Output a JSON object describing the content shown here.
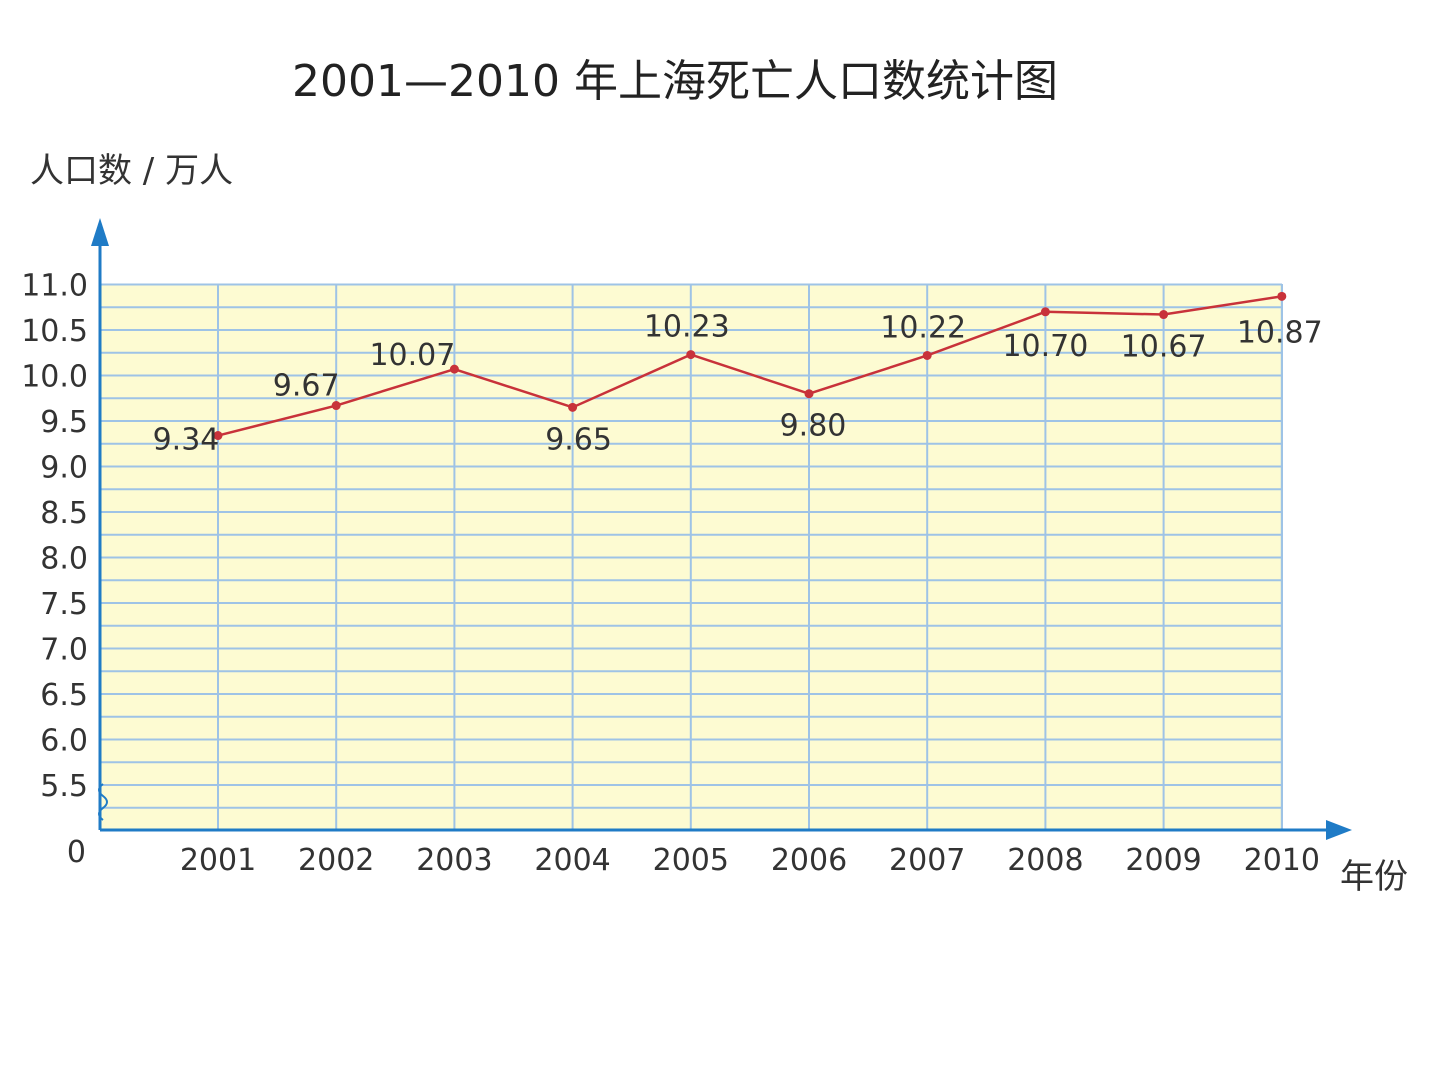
{
  "chart_data": {
    "type": "line",
    "title": "2001—2010 年上海死亡人口数统计图",
    "ylabel": "人口数 / 万人",
    "xlabel": "年份",
    "origin_label": "0",
    "categories": [
      "2001",
      "2002",
      "2003",
      "2004",
      "2005",
      "2006",
      "2007",
      "2008",
      "2009",
      "2010"
    ],
    "series": [
      {
        "values": [
          9.34,
          9.67,
          10.07,
          9.65,
          10.23,
          9.8,
          10.22,
          10.7,
          10.67,
          10.87
        ],
        "labels": [
          "9.34",
          "9.67",
          "10.07",
          "9.65",
          "10.23",
          "9.80",
          "10.22",
          "10.70",
          "10.67",
          "10.87"
        ]
      }
    ],
    "yticks": [
      "5.5",
      "6.0",
      "6.5",
      "7.0",
      "7.5",
      "8.0",
      "8.5",
      "9.0",
      "9.5",
      "10.0",
      "10.5",
      "11.0"
    ],
    "ylim": [
      5.0,
      11.0
    ],
    "y_axis_break": true,
    "grid": true,
    "colors": {
      "plot_background": "#fdfbd2",
      "grid": "#9ec3e6",
      "axis": "#1f7bc6",
      "line": "#c8323a",
      "marker": "#c8323a"
    }
  }
}
